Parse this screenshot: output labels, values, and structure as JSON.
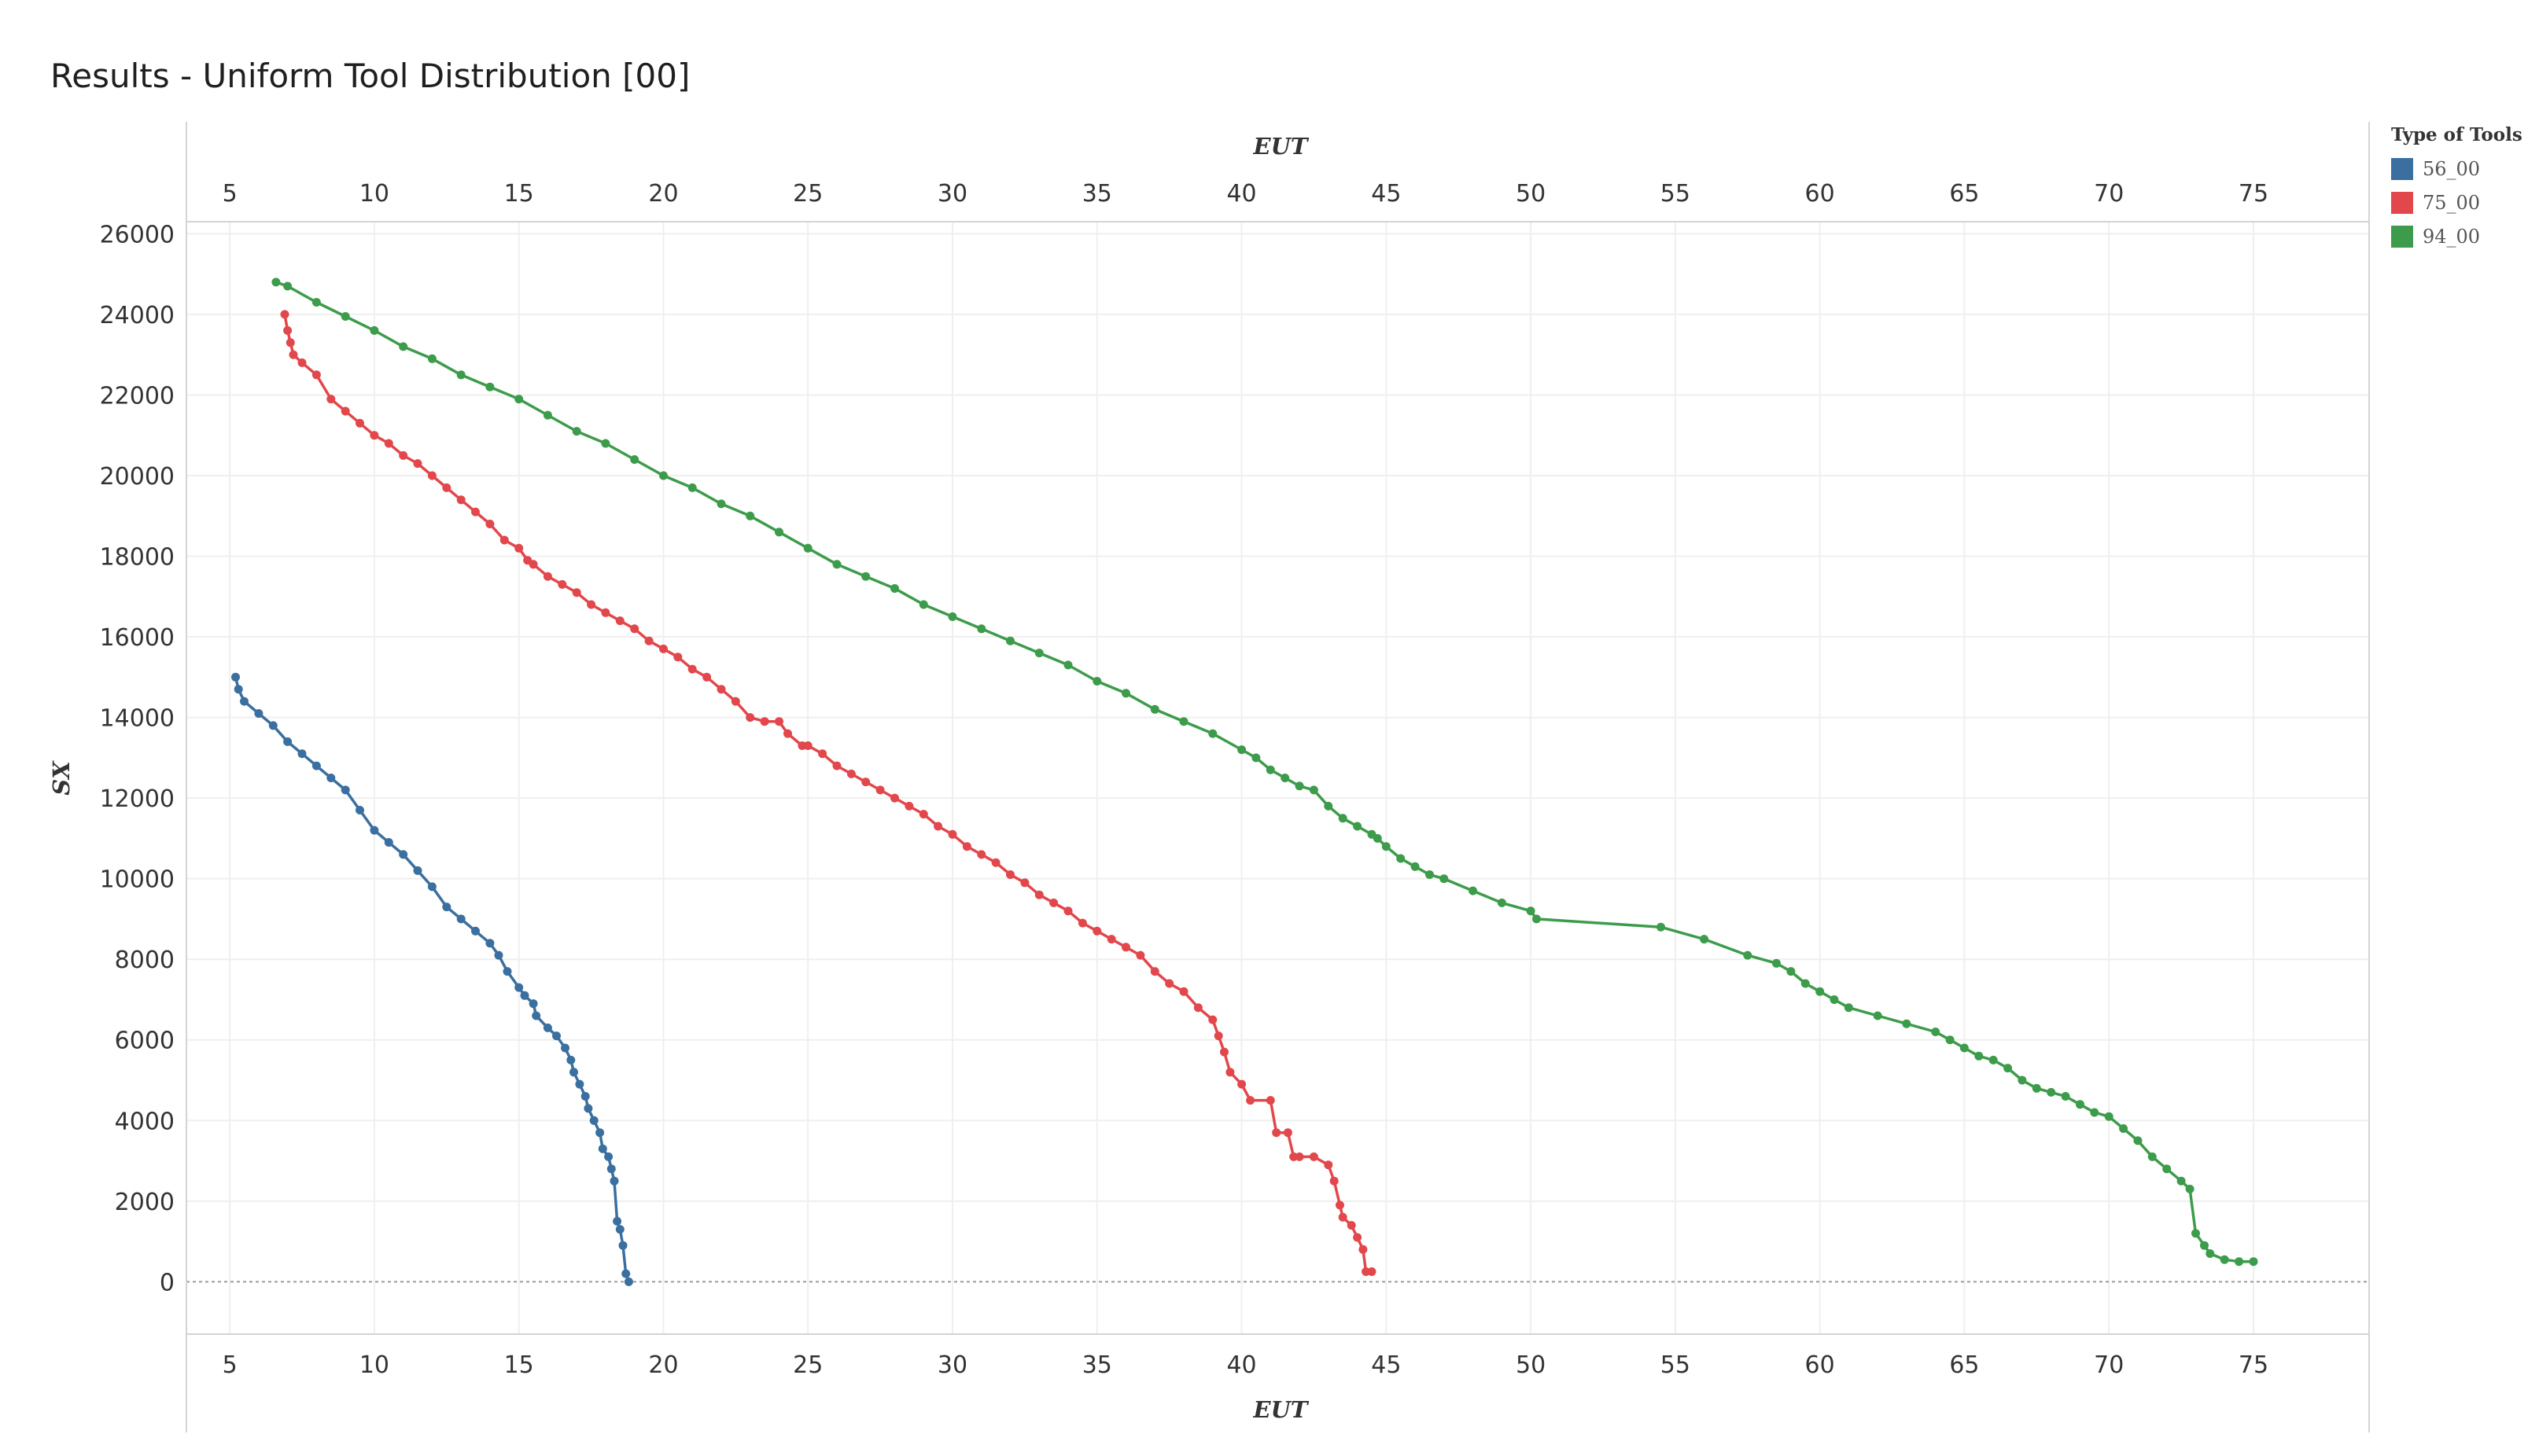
{
  "title": "Results - Uniform Tool Distribution [00]",
  "legend": {
    "title": "Type of Tools",
    "items": [
      {
        "label": "56_00",
        "color": "#3a6f9f"
      },
      {
        "label": "75_00",
        "color": "#e2474c"
      },
      {
        "label": "94_00",
        "color": "#3d9c4b"
      }
    ]
  },
  "chart_data": {
    "type": "line",
    "title": "Results - Uniform Tool Distribution [00]",
    "xlabel": "EUT",
    "ylabel": "SX",
    "xlim": [
      3.5,
      79
    ],
    "ylim": [
      -1300,
      26300
    ],
    "x_ticks": [
      "5",
      "10",
      "15",
      "20",
      "25",
      "30",
      "35",
      "40",
      "45",
      "50",
      "55",
      "60",
      "65",
      "70",
      "75"
    ],
    "y_ticks": [
      "26000",
      "24000",
      "22000",
      "20000",
      "18000",
      "16000",
      "14000",
      "12000",
      "10000",
      "8000",
      "6000",
      "4000",
      "2000",
      "0"
    ],
    "grid": true,
    "markers": true,
    "legend_position": "top-right",
    "series": [
      {
        "name": "56_00",
        "color": "#3a6f9f",
        "points": [
          [
            5.2,
            15000
          ],
          [
            5.3,
            14700
          ],
          [
            5.5,
            14400
          ],
          [
            6,
            14100
          ],
          [
            6.5,
            13800
          ],
          [
            7,
            13400
          ],
          [
            7.5,
            13100
          ],
          [
            8,
            12800
          ],
          [
            8.5,
            12500
          ],
          [
            9,
            12200
          ],
          [
            9.5,
            11700
          ],
          [
            10,
            11200
          ],
          [
            10.5,
            10900
          ],
          [
            11,
            10600
          ],
          [
            11.5,
            10200
          ],
          [
            12,
            9800
          ],
          [
            12.5,
            9300
          ],
          [
            13,
            9000
          ],
          [
            13.5,
            8700
          ],
          [
            14,
            8400
          ],
          [
            14.3,
            8100
          ],
          [
            14.6,
            7700
          ],
          [
            15,
            7300
          ],
          [
            15.2,
            7100
          ],
          [
            15.5,
            6900
          ],
          [
            15.6,
            6600
          ],
          [
            16,
            6300
          ],
          [
            16.3,
            6100
          ],
          [
            16.6,
            5800
          ],
          [
            16.8,
            5500
          ],
          [
            16.9,
            5200
          ],
          [
            17.1,
            4900
          ],
          [
            17.3,
            4600
          ],
          [
            17.4,
            4300
          ],
          [
            17.6,
            4000
          ],
          [
            17.8,
            3700
          ],
          [
            17.9,
            3300
          ],
          [
            18.1,
            3100
          ],
          [
            18.2,
            2800
          ],
          [
            18.3,
            2500
          ],
          [
            18.4,
            1500
          ],
          [
            18.5,
            1300
          ],
          [
            18.6,
            900
          ],
          [
            18.7,
            200
          ],
          [
            18.8,
            0
          ]
        ]
      },
      {
        "name": "75_00",
        "color": "#e2474c",
        "points": [
          [
            6.9,
            24000
          ],
          [
            7,
            23600
          ],
          [
            7.1,
            23300
          ],
          [
            7.2,
            23000
          ],
          [
            7.5,
            22800
          ],
          [
            8,
            22500
          ],
          [
            8.5,
            21900
          ],
          [
            9,
            21600
          ],
          [
            9.5,
            21300
          ],
          [
            10,
            21000
          ],
          [
            10.5,
            20800
          ],
          [
            11,
            20500
          ],
          [
            11.5,
            20300
          ],
          [
            12,
            20000
          ],
          [
            12.5,
            19700
          ],
          [
            13,
            19400
          ],
          [
            13.5,
            19100
          ],
          [
            14,
            18800
          ],
          [
            14.5,
            18400
          ],
          [
            15,
            18200
          ],
          [
            15.3,
            17900
          ],
          [
            15.5,
            17800
          ],
          [
            16,
            17500
          ],
          [
            16.5,
            17300
          ],
          [
            17,
            17100
          ],
          [
            17.5,
            16800
          ],
          [
            18,
            16600
          ],
          [
            18.5,
            16400
          ],
          [
            19,
            16200
          ],
          [
            19.5,
            15900
          ],
          [
            20,
            15700
          ],
          [
            20.5,
            15500
          ],
          [
            21,
            15200
          ],
          [
            21.5,
            15000
          ],
          [
            22,
            14700
          ],
          [
            22.5,
            14400
          ],
          [
            23,
            14000
          ],
          [
            23.5,
            13900
          ],
          [
            24,
            13900
          ],
          [
            24.3,
            13600
          ],
          [
            24.8,
            13300
          ],
          [
            25,
            13300
          ],
          [
            25.5,
            13100
          ],
          [
            26,
            12800
          ],
          [
            26.5,
            12600
          ],
          [
            27,
            12400
          ],
          [
            27.5,
            12200
          ],
          [
            28,
            12000
          ],
          [
            28.5,
            11800
          ],
          [
            29,
            11600
          ],
          [
            29.5,
            11300
          ],
          [
            30,
            11100
          ],
          [
            30.5,
            10800
          ],
          [
            31,
            10600
          ],
          [
            31.5,
            10400
          ],
          [
            32,
            10100
          ],
          [
            32.5,
            9900
          ],
          [
            33,
            9600
          ],
          [
            33.5,
            9400
          ],
          [
            34,
            9200
          ],
          [
            34.5,
            8900
          ],
          [
            35,
            8700
          ],
          [
            35.5,
            8500
          ],
          [
            36,
            8300
          ],
          [
            36.5,
            8100
          ],
          [
            37,
            7700
          ],
          [
            37.5,
            7400
          ],
          [
            38,
            7200
          ],
          [
            38.5,
            6800
          ],
          [
            39,
            6500
          ],
          [
            39.2,
            6100
          ],
          [
            39.4,
            5700
          ],
          [
            39.6,
            5200
          ],
          [
            40,
            4900
          ],
          [
            40.3,
            4500
          ],
          [
            41,
            4500
          ],
          [
            41.2,
            3700
          ],
          [
            41.6,
            3700
          ],
          [
            41.8,
            3100
          ],
          [
            42,
            3100
          ],
          [
            42.5,
            3100
          ],
          [
            43,
            2900
          ],
          [
            43.2,
            2500
          ],
          [
            43.4,
            1900
          ],
          [
            43.5,
            1600
          ],
          [
            43.8,
            1400
          ],
          [
            44,
            1100
          ],
          [
            44.2,
            800
          ],
          [
            44.3,
            250
          ],
          [
            44.5,
            250
          ]
        ]
      },
      {
        "name": "94_00",
        "color": "#3d9c4b",
        "points": [
          [
            6.6,
            24800
          ],
          [
            7,
            24700
          ],
          [
            8,
            24300
          ],
          [
            9,
            23950
          ],
          [
            10,
            23600
          ],
          [
            11,
            23200
          ],
          [
            12,
            22900
          ],
          [
            13,
            22500
          ],
          [
            14,
            22200
          ],
          [
            15,
            21900
          ],
          [
            16,
            21500
          ],
          [
            17,
            21100
          ],
          [
            18,
            20800
          ],
          [
            19,
            20400
          ],
          [
            20,
            20000
          ],
          [
            21,
            19700
          ],
          [
            22,
            19300
          ],
          [
            23,
            19000
          ],
          [
            24,
            18600
          ],
          [
            25,
            18200
          ],
          [
            26,
            17800
          ],
          [
            27,
            17500
          ],
          [
            28,
            17200
          ],
          [
            29,
            16800
          ],
          [
            30,
            16500
          ],
          [
            31,
            16200
          ],
          [
            32,
            15900
          ],
          [
            33,
            15600
          ],
          [
            34,
            15300
          ],
          [
            35,
            14900
          ],
          [
            36,
            14600
          ],
          [
            37,
            14200
          ],
          [
            38,
            13900
          ],
          [
            39,
            13600
          ],
          [
            40,
            13200
          ],
          [
            40.5,
            13000
          ],
          [
            41,
            12700
          ],
          [
            41.5,
            12500
          ],
          [
            42,
            12300
          ],
          [
            42.5,
            12200
          ],
          [
            43,
            11800
          ],
          [
            43.5,
            11500
          ],
          [
            44,
            11300
          ],
          [
            44.5,
            11100
          ],
          [
            44.7,
            11000
          ],
          [
            45,
            10800
          ],
          [
            45.5,
            10500
          ],
          [
            46,
            10300
          ],
          [
            46.5,
            10100
          ],
          [
            47,
            10000
          ],
          [
            48,
            9700
          ],
          [
            49,
            9400
          ],
          [
            50,
            9200
          ],
          [
            50.2,
            9000
          ],
          [
            54.5,
            8800
          ],
          [
            56,
            8500
          ],
          [
            57.5,
            8100
          ],
          [
            58.5,
            7900
          ],
          [
            59,
            7700
          ],
          [
            59.5,
            7400
          ],
          [
            60,
            7200
          ],
          [
            60.5,
            7000
          ],
          [
            61,
            6800
          ],
          [
            62,
            6600
          ],
          [
            63,
            6400
          ],
          [
            64,
            6200
          ],
          [
            64.5,
            6000
          ],
          [
            65,
            5800
          ],
          [
            65.5,
            5600
          ],
          [
            66,
            5500
          ],
          [
            66.5,
            5300
          ],
          [
            67,
            5000
          ],
          [
            67.5,
            4800
          ],
          [
            68,
            4700
          ],
          [
            68.5,
            4600
          ],
          [
            69,
            4400
          ],
          [
            69.5,
            4200
          ],
          [
            70,
            4100
          ],
          [
            70.5,
            3800
          ],
          [
            71,
            3500
          ],
          [
            71.5,
            3100
          ],
          [
            72,
            2800
          ],
          [
            72.5,
            2500
          ],
          [
            72.8,
            2300
          ],
          [
            73,
            1200
          ],
          [
            73.3,
            900
          ],
          [
            73.5,
            700
          ],
          [
            74,
            550
          ],
          [
            74.5,
            500
          ],
          [
            75,
            500
          ]
        ]
      }
    ]
  }
}
